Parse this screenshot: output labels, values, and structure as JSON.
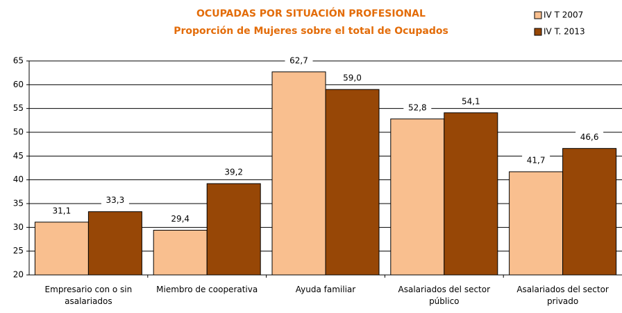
{
  "chart_data": {
    "type": "bar",
    "title": "OCUPADAS POR SITUACIÓN PROFESIONAL",
    "subtitle": "Proporción de Mujeres sobre el total de Ocupados",
    "categories": [
      "Empresario con o sin asalariados",
      "Miembro de cooperativa",
      "Ayuda familiar",
      "Asalariados del sector público",
      "Asalariados del sector privado"
    ],
    "series": [
      {
        "name": "IV T 2007",
        "color": "#f9bf8f",
        "values": [
          31.1,
          29.4,
          62.7,
          52.8,
          41.7
        ],
        "value_labels": [
          "31,1",
          "29,4",
          "62,7",
          "52,8",
          "41,7"
        ]
      },
      {
        "name": "IV T. 2013",
        "color": "#974706",
        "values": [
          33.3,
          39.2,
          59.0,
          54.1,
          46.6
        ],
        "value_labels": [
          "33,3",
          "39,2",
          "59,0",
          "54,1",
          "46,6"
        ]
      }
    ],
    "ylim": [
      20,
      65
    ],
    "yticks": [
      20,
      25,
      30,
      35,
      40,
      45,
      50,
      55,
      60,
      65
    ],
    "grid": true,
    "legend": "top-right"
  }
}
